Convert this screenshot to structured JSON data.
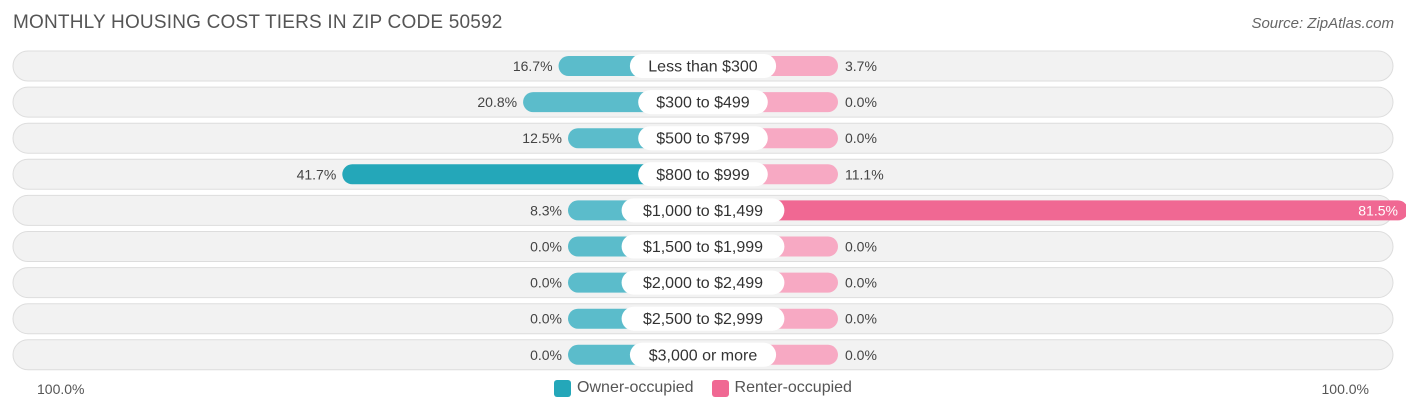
{
  "title": "MONTHLY HOUSING COST TIERS IN ZIP CODE 50592",
  "source": "Source: ZipAtlas.com",
  "colors": {
    "owner": "#5bbccb",
    "owner_strong": "#24a7b9",
    "renter": "#f7a9c3",
    "renter_strong": "#f06893",
    "row_bg": "#f2f2f2",
    "row_border": "#dddddd"
  },
  "axis": {
    "left_label": "100.0%",
    "right_label": "100.0%"
  },
  "legend": {
    "owner_label": "Owner-occupied",
    "renter_label": "Renter-occupied"
  },
  "chart_data": {
    "type": "bar",
    "orientation": "diverging-horizontal",
    "title": "MONTHLY HOUSING COST TIERS IN ZIP CODE 50592",
    "categories": [
      "Less than $300",
      "$300 to $499",
      "$500 to $799",
      "$800 to $999",
      "$1,000 to $1,499",
      "$1,500 to $1,999",
      "$2,000 to $2,499",
      "$2,500 to $2,999",
      "$3,000 or more"
    ],
    "series": [
      {
        "name": "Owner-occupied",
        "values": [
          16.7,
          20.8,
          12.5,
          41.7,
          8.3,
          0.0,
          0.0,
          0.0,
          0.0
        ],
        "labels": [
          "16.7%",
          "20.8%",
          "12.5%",
          "41.7%",
          "8.3%",
          "0.0%",
          "0.0%",
          "0.0%",
          "0.0%"
        ]
      },
      {
        "name": "Renter-occupied",
        "values": [
          3.7,
          0.0,
          0.0,
          11.1,
          81.5,
          0.0,
          0.0,
          0.0,
          0.0
        ],
        "labels": [
          "3.7%",
          "0.0%",
          "0.0%",
          "11.1%",
          "81.5%",
          "0.0%",
          "0.0%",
          "0.0%",
          "0.0%"
        ]
      }
    ],
    "xlim": [
      -100,
      100
    ],
    "legend_position": "bottom-center"
  }
}
